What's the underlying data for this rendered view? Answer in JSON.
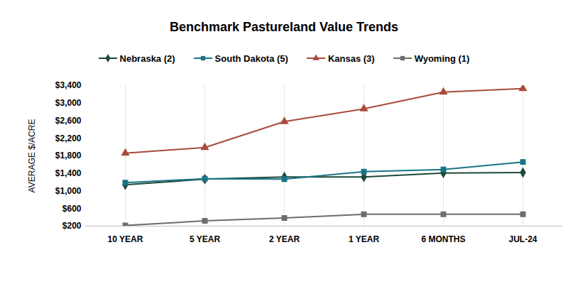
{
  "chart_data": {
    "type": "line",
    "title": "Benchmark Pastureland Value Trends",
    "y_label": "AVERAGE $/ACRE",
    "categories": [
      "10 YEAR",
      "5 YEAR",
      "2 YEAR",
      "1 YEAR",
      "6 MONTHS",
      "JUL-24"
    ],
    "series": [
      {
        "name": "Nebraska (2)",
        "color": "#1c4a3a",
        "marker": "diamond",
        "values": [
          1140,
          1270,
          1320,
          1320,
          1410,
          1420
        ]
      },
      {
        "name": "South Dakota (5)",
        "color": "#1a7486",
        "marker": "square",
        "values": [
          1190,
          1280,
          1270,
          1440,
          1490,
          1660
        ]
      },
      {
        "name": "Kansas (3)",
        "color": "#a94a3d",
        "marker": "triangle",
        "values": [
          1860,
          1990,
          2580,
          2870,
          3250,
          3330
        ]
      },
      {
        "name": "Wyoming (1)",
        "color": "#6d6d6d",
        "marker": "square",
        "values": [
          215,
          320,
          385,
          470,
          470,
          470
        ]
      }
    ],
    "ylim": [
      200,
      3400
    ],
    "yticks": [
      {
        "value": 200,
        "label": "$200"
      },
      {
        "value": 600,
        "label": "$600"
      },
      {
        "value": 1000,
        "label": "$1,000"
      },
      {
        "value": 1400,
        "label": "$1,400"
      },
      {
        "value": 1800,
        "label": "$1,800"
      },
      {
        "value": 2200,
        "label": "$2,200"
      },
      {
        "value": 2600,
        "label": "$2,600"
      },
      {
        "value": 3000,
        "label": "$3,000"
      },
      {
        "value": 3400,
        "label": "$3,400"
      }
    ],
    "grid": true,
    "legend": "top"
  }
}
